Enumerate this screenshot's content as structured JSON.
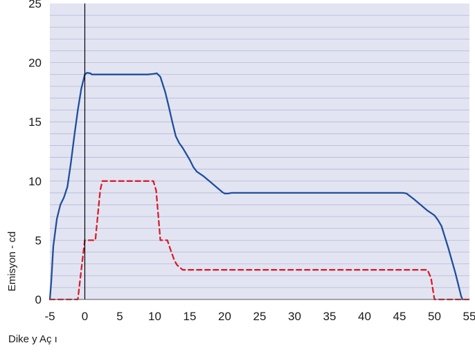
{
  "chart_data": {
    "type": "line",
    "title": "",
    "xlabel": "Dike y Aç ı",
    "ylabel": "Emisyon - cd",
    "xlim": [
      -5,
      55
    ],
    "ylim": [
      0,
      25
    ],
    "x_ticks": [
      -5,
      0,
      5,
      10,
      15,
      20,
      25,
      30,
      35,
      40,
      45,
      50,
      55
    ],
    "y_ticks": [
      0,
      5,
      10,
      15,
      20,
      25
    ],
    "grid": true,
    "background_color": "#e2e4f2",
    "grid_color": "#b4b9d6",
    "vertical_reference_line_x": 0,
    "series": [
      {
        "style": "solid",
        "color": "#1f4e9c",
        "points": [
          [
            -5,
            0
          ],
          [
            -4.8,
            1.5
          ],
          [
            -4.5,
            4.5
          ],
          [
            -4,
            6.8
          ],
          [
            -3.5,
            8
          ],
          [
            -3,
            8.6
          ],
          [
            -2.5,
            9.5
          ],
          [
            -2,
            11.5
          ],
          [
            -1.5,
            13.8
          ],
          [
            -1,
            16
          ],
          [
            -0.5,
            17.8
          ],
          [
            0,
            19
          ],
          [
            0.3,
            19.15
          ],
          [
            0.8,
            19.1
          ],
          [
            1,
            19
          ],
          [
            3,
            19
          ],
          [
            6,
            19
          ],
          [
            9,
            19
          ],
          [
            9.8,
            19.05
          ],
          [
            10.3,
            19.1
          ],
          [
            10.8,
            18.8
          ],
          [
            11.5,
            17.5
          ],
          [
            12,
            16.3
          ],
          [
            12.5,
            15
          ],
          [
            13,
            13.8
          ],
          [
            13.5,
            13.2
          ],
          [
            14,
            12.8
          ],
          [
            15,
            11.8
          ],
          [
            15.5,
            11.2
          ],
          [
            16,
            10.8
          ],
          [
            17,
            10.4
          ],
          [
            18,
            9.9
          ],
          [
            19,
            9.4
          ],
          [
            19.7,
            9.05
          ],
          [
            20,
            8.95
          ],
          [
            20.5,
            8.95
          ],
          [
            21,
            9
          ],
          [
            30,
            9
          ],
          [
            40,
            9
          ],
          [
            45.5,
            9
          ],
          [
            46,
            8.95
          ],
          [
            47,
            8.5
          ],
          [
            48,
            8
          ],
          [
            49,
            7.5
          ],
          [
            50,
            7.1
          ],
          [
            50.5,
            6.7
          ],
          [
            51,
            6.2
          ],
          [
            52,
            4.3
          ],
          [
            53,
            2.2
          ],
          [
            53.8,
            0.3
          ],
          [
            54,
            0
          ]
        ]
      },
      {
        "style": "dashed",
        "color": "#d91e2a",
        "points": [
          [
            -5,
            0
          ],
          [
            -1,
            0
          ],
          [
            -0.5,
            2.5
          ],
          [
            0,
            5
          ],
          [
            1.5,
            5
          ],
          [
            2.2,
            9.2
          ],
          [
            2.5,
            10
          ],
          [
            9.8,
            10
          ],
          [
            10.2,
            9.2
          ],
          [
            10.8,
            5
          ],
          [
            11.8,
            5
          ],
          [
            12.2,
            4.3
          ],
          [
            12.8,
            3.3
          ],
          [
            13.2,
            2.9
          ],
          [
            14,
            2.5
          ],
          [
            20,
            2.5
          ],
          [
            30,
            2.5
          ],
          [
            40,
            2.5
          ],
          [
            49,
            2.5
          ],
          [
            49.5,
            1.8
          ],
          [
            50,
            0
          ],
          [
            55,
            0
          ]
        ]
      }
    ]
  }
}
